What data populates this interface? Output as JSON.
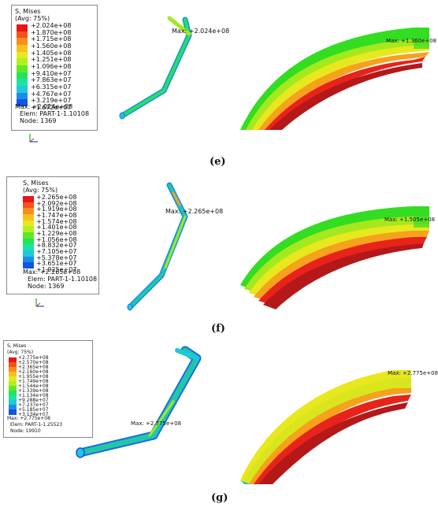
{
  "panels": [
    {
      "caption": "(e)",
      "legend": {
        "title": "S, Mises",
        "subtitle": "(Avg: 75%)",
        "levels": [
          "+2.024e+08",
          "+1.870e+08",
          "+1.715e+08",
          "+1.560e+08",
          "+1.405e+08",
          "+1.251e+08",
          "+1.096e+08",
          "+9.410e+07",
          "+7.863e+07",
          "+6.315e+07",
          "+4.767e+07",
          "+3.219e+07",
          "+1.672e+07"
        ],
        "max_line": "Max: +2.024e+08",
        "elem_line": "Elem: PART-1-1.10108",
        "node_line": "Node: 1369"
      },
      "model_max_label": "Max: +2.024e+08",
      "detail_max_label": "Max: +1.360e+08"
    },
    {
      "caption": "(f)",
      "legend": {
        "title": "S, Mises",
        "subtitle": "(Avg: 75%)",
        "levels": [
          "+2.265e+08",
          "+2.092e+08",
          "+1.919e+08",
          "+1.747e+08",
          "+1.574e+08",
          "+1.401e+08",
          "+1.229e+08",
          "+1.056e+08",
          "+8.832e+07",
          "+7.105e+07",
          "+5.378e+07",
          "+3.651e+07",
          "+1.925e+07"
        ],
        "max_line": "Max: +2.265e+08",
        "elem_line": "Elem: PART-1-1.10108",
        "node_line": "Node: 1369"
      },
      "model_max_label": "Max: +2.265e+08",
      "detail_max_label": "Max: +1.505e+08"
    },
    {
      "caption": "(g)",
      "legend": {
        "title": "S, Mises",
        "subtitle": "(Avg: 75%)",
        "levels": [
          "+2.775e+08",
          "+2.570e+08",
          "+2.365e+08",
          "+2.160e+08",
          "+1.955e+08",
          "+1.749e+08",
          "+1.544e+08",
          "+1.339e+08",
          "+1.134e+08",
          "+9.288e+07",
          "+7.237e+07",
          "+5.185e+07",
          "+3.134e+07"
        ],
        "max_line": "Max: +2.775e+08",
        "elem_line": "Elem: PART-1-1.25523",
        "node_line": "Node: 19910"
      },
      "model_max_label": "Max: +2.775e+08",
      "detail_max_label": "Max: +2.775e+08"
    }
  ],
  "colormap": [
    "#e8151b",
    "#f5511a",
    "#f88d1d",
    "#f7c11d",
    "#e6e81e",
    "#b2ef1f",
    "#5fe924",
    "#25e25a",
    "#1ee2a5",
    "#1ec9da",
    "#1a8ee6",
    "#1254e6",
    "#0a1fd6"
  ],
  "fea_colors": {
    "green": "#33dd22",
    "lime": "#a4e81e",
    "yellow": "#e7e81e",
    "orange": "#f5a21d",
    "red": "#e8231b",
    "darkred": "#b51818",
    "cyan": "#1ec9da",
    "blue": "#1a6ee6",
    "teal": "#22c7a8"
  }
}
